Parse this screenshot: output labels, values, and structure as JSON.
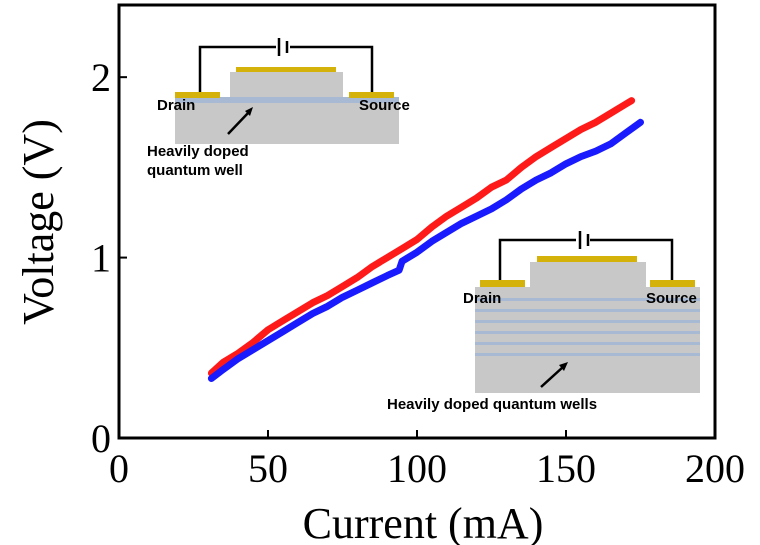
{
  "chart_data": {
    "type": "line",
    "xlabel": "Current (mA)",
    "ylabel": "Voltage (V)",
    "xlim": [
      0,
      200
    ],
    "ylim": [
      0,
      2.4
    ],
    "x_ticks": [
      "0",
      "50",
      "100",
      "150",
      "200"
    ],
    "y_ticks": [
      "0",
      "1",
      "2"
    ],
    "grid": false,
    "series": [
      {
        "color": "#ff1a1a",
        "x": [
          31,
          35,
          40,
          45,
          50,
          55,
          60,
          65,
          70,
          75,
          80,
          85,
          90,
          95,
          100,
          105,
          110,
          115,
          120,
          125,
          130,
          135,
          140,
          145,
          150,
          155,
          160,
          165,
          170,
          172
        ],
        "y": [
          0.36,
          0.42,
          0.47,
          0.53,
          0.6,
          0.65,
          0.7,
          0.75,
          0.79,
          0.84,
          0.89,
          0.95,
          1.0,
          1.05,
          1.1,
          1.17,
          1.23,
          1.28,
          1.33,
          1.39,
          1.43,
          1.5,
          1.56,
          1.61,
          1.66,
          1.71,
          1.75,
          1.8,
          1.85,
          1.87
        ]
      },
      {
        "color": "#1a1aff",
        "x": [
          31,
          35,
          40,
          45,
          50,
          55,
          60,
          65,
          70,
          75,
          80,
          85,
          90,
          94,
          95,
          100,
          105,
          110,
          115,
          120,
          125,
          130,
          135,
          140,
          145,
          150,
          155,
          160,
          165,
          170,
          175
        ],
        "y": [
          0.33,
          0.38,
          0.44,
          0.49,
          0.54,
          0.59,
          0.64,
          0.69,
          0.73,
          0.78,
          0.82,
          0.86,
          0.9,
          0.93,
          0.98,
          1.03,
          1.09,
          1.14,
          1.19,
          1.23,
          1.27,
          1.32,
          1.38,
          1.43,
          1.47,
          1.52,
          1.56,
          1.59,
          1.63,
          1.69,
          1.75
        ]
      }
    ],
    "insets": [
      {
        "drain_label": "Drain",
        "source_label": "Source",
        "caption": "Heavily doped",
        "caption_line2": "quantum well"
      },
      {
        "drain_label": "Drain",
        "source_label": "Source",
        "caption": "Heavily doped quantum wells"
      }
    ]
  },
  "colors": {
    "metal_contact": "#d4b20a",
    "substrate": "#c8c8c8",
    "quantum_well": "#a8b9d4",
    "circuit_wire": "#000000"
  }
}
